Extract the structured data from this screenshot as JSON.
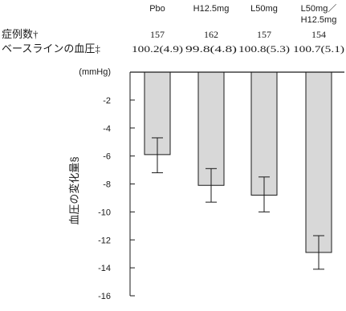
{
  "chart_data": {
    "type": "bar",
    "categories": [
      "Pbo",
      "H12.5mg",
      "L50mg",
      "L50mg／H12.5mg"
    ],
    "category_label_lines": [
      [
        "Pbo"
      ],
      [
        "H12.5mg"
      ],
      [
        "L50mg"
      ],
      [
        "L50mg／",
        "H12.5mg"
      ]
    ],
    "values": [
      -5.9,
      -8.1,
      -8.8,
      -12.9
    ],
    "error_bars": [
      {
        "low": -7.2,
        "high": -4.7
      },
      {
        "low": -9.3,
        "high": -6.9
      },
      {
        "low": -10.0,
        "high": -7.5
      },
      {
        "low": -14.1,
        "high": -11.7
      }
    ],
    "sample_size_label": "症例数†",
    "sample_sizes": [
      "157",
      "162",
      "157",
      "154"
    ],
    "baseline_label": "ベースラインの血圧‡",
    "baseline_values": [
      "100.2(4.9)",
      "99.8(4.8)",
      "100.8(5.3)",
      "100.7(5.1)"
    ],
    "unit_label": "(mmHg)",
    "ylabel": "血圧の変化量§",
    "xlabel": "",
    "ylim": [
      -16,
      0
    ],
    "yticks": [
      -2,
      -4,
      -6,
      -8,
      -10,
      -12,
      -14,
      -16
    ],
    "ytick_labels": [
      "-2",
      "-4",
      "-6",
      "-8",
      "-10",
      "-12",
      "-14",
      "-16"
    ],
    "bar_color": "#d8d8d8",
    "bar_stroke": "#1a1a1a",
    "grid": false
  }
}
